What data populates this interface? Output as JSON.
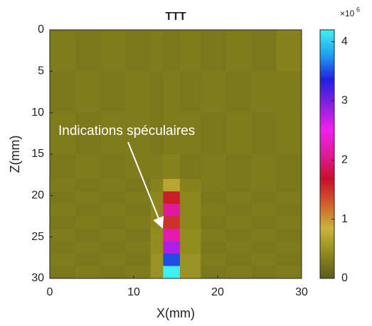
{
  "chart_data": {
    "type": "heatmap",
    "title": "TTT",
    "xlabel": "X(mm)",
    "ylabel": "Z(mm)",
    "annotation": "Indications spéculaires",
    "x_edges": [
      0,
      3,
      6,
      9,
      12,
      13.5,
      15.5,
      18,
      21,
      24,
      27,
      30
    ],
    "y_edges": [
      0,
      5,
      10,
      15,
      18,
      19.5,
      21,
      22.5,
      24,
      25.5,
      27,
      28.5,
      30
    ],
    "values": [
      [
        0.3,
        0.25,
        0.3,
        0.25,
        0.3,
        0.25,
        0.3,
        0.25,
        0.3,
        0.25,
        0.35
      ],
      [
        0.25,
        0.3,
        0.25,
        0.3,
        0.25,
        0.3,
        0.25,
        0.3,
        0.25,
        0.3,
        0.3
      ],
      [
        0.3,
        0.25,
        0.3,
        0.3,
        0.25,
        0.3,
        0.3,
        0.25,
        0.3,
        0.25,
        0.3
      ],
      [
        0.25,
        0.3,
        0.25,
        0.3,
        0.3,
        0.35,
        0.25,
        0.3,
        0.25,
        0.3,
        0.25
      ],
      [
        0.3,
        0.25,
        0.3,
        0.25,
        0.35,
        0.7,
        0.35,
        0.3,
        0.25,
        0.3,
        0.25
      ],
      [
        0.25,
        0.3,
        0.25,
        0.3,
        0.4,
        1.6,
        0.4,
        0.25,
        0.3,
        0.25,
        0.3
      ],
      [
        0.3,
        0.25,
        0.3,
        0.25,
        0.4,
        2.1,
        0.4,
        0.3,
        0.25,
        0.3,
        0.25
      ],
      [
        0.25,
        0.3,
        0.25,
        0.3,
        0.4,
        1.5,
        0.4,
        0.25,
        0.3,
        0.25,
        0.3
      ],
      [
        0.3,
        0.25,
        0.3,
        0.25,
        0.45,
        2.2,
        0.45,
        0.3,
        0.25,
        0.3,
        0.25
      ],
      [
        0.25,
        0.3,
        0.25,
        0.3,
        0.45,
        2.8,
        0.45,
        0.25,
        0.3,
        0.25,
        0.3
      ],
      [
        0.3,
        0.25,
        0.3,
        0.25,
        0.5,
        3.5,
        0.5,
        0.3,
        0.25,
        0.3,
        0.25
      ],
      [
        0.25,
        0.3,
        0.25,
        0.3,
        0.5,
        4.2,
        0.5,
        0.25,
        0.3,
        0.25,
        0.3
      ]
    ],
    "xlim": [
      0,
      30
    ],
    "xticks": [
      0,
      10,
      20,
      30
    ],
    "ylim": [
      0,
      30
    ],
    "yticks": [
      0,
      5,
      10,
      15,
      20,
      25,
      30
    ],
    "y_direction": "reverse",
    "clim": [
      0,
      4.2
    ],
    "cticks": [
      0,
      1,
      2,
      3,
      4
    ],
    "colorbar_multiplier": "×10",
    "colorbar_exponent": "6",
    "colormap": [
      "#5c5a1c",
      "#8f8a1e",
      "#c9b43a",
      "#d0602a",
      "#c8102a",
      "#e01a9a",
      "#f020f0",
      "#8a20e0",
      "#2020e0",
      "#20a0f0",
      "#40f0f0"
    ]
  }
}
